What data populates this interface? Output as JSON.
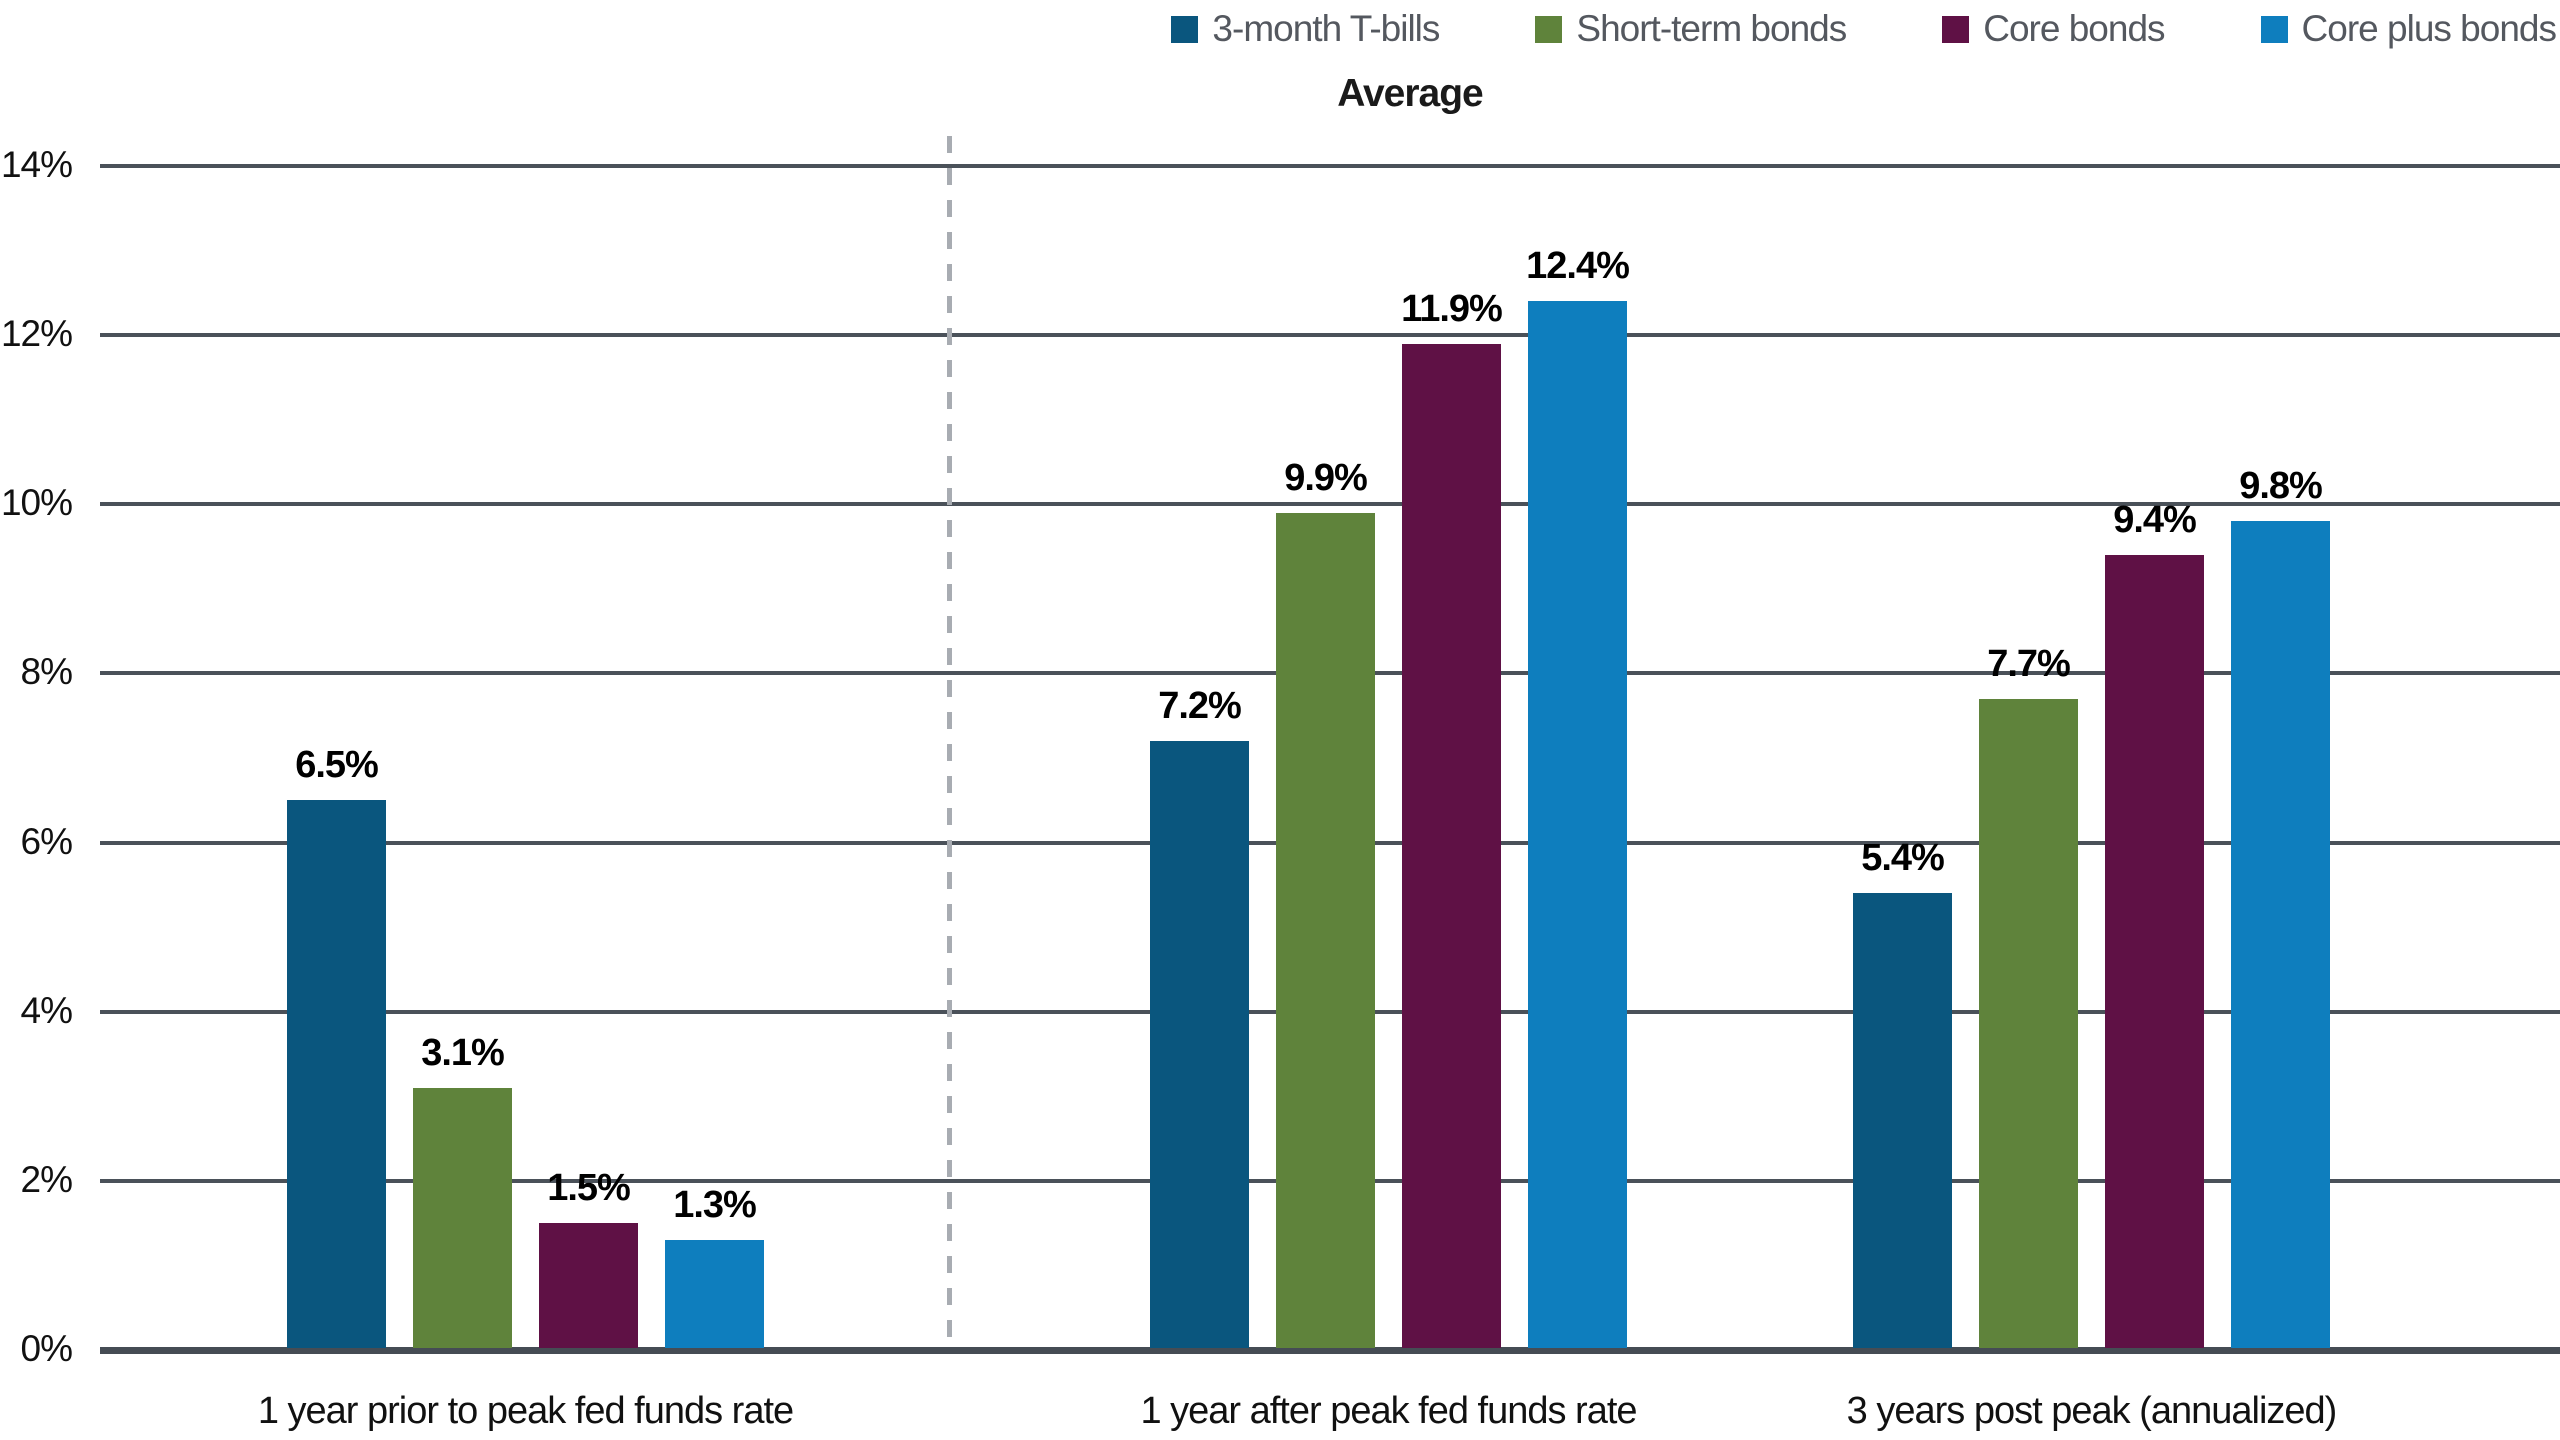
{
  "title": "Average",
  "legend": {
    "position": "top-right",
    "items": [
      {
        "label": "3-month T-bills",
        "color": "#0A567E"
      },
      {
        "label": "Short-term bonds",
        "color": "#5F833B"
      },
      {
        "label": "Core bonds",
        "color": "#5F1145"
      },
      {
        "label": "Core plus bonds",
        "color": "#0E7EBE"
      }
    ]
  },
  "chart_data": {
    "type": "bar",
    "title": "Average",
    "categories": [
      "1 year prior to peak fed funds rate",
      "1 year after peak fed funds rate",
      "3 years post peak (annualized)"
    ],
    "series": [
      {
        "name": "3-month T-bills",
        "color": "#0A567E",
        "values": [
          6.5,
          7.2,
          5.4
        ],
        "labels": [
          "6.5%",
          "7.2%",
          "5.4%"
        ]
      },
      {
        "name": "Short-term bonds",
        "color": "#5F833B",
        "values": [
          3.1,
          9.9,
          7.7
        ],
        "labels": [
          "3.1%",
          "9.9%",
          "7.7%"
        ]
      },
      {
        "name": "Core bonds",
        "color": "#5F1145",
        "values": [
          1.5,
          11.9,
          9.4
        ],
        "labels": [
          "1.5%",
          "11.9%",
          "9.4%"
        ]
      },
      {
        "name": "Core plus bonds",
        "color": "#0E7EBE",
        "values": [
          1.3,
          12.4,
          9.8
        ],
        "labels": [
          "1.3%",
          "12.4%",
          "9.8%"
        ]
      }
    ],
    "xlabel": "",
    "ylabel": "",
    "ylim": [
      0,
      14
    ],
    "yticks": [
      {
        "value": 0,
        "label": "0%"
      },
      {
        "value": 2,
        "label": "2%"
      },
      {
        "value": 4,
        "label": "4%"
      },
      {
        "value": 6,
        "label": "6%"
      },
      {
        "value": 8,
        "label": "8%"
      },
      {
        "value": 10,
        "label": "10%"
      },
      {
        "value": 12,
        "label": "12%"
      },
      {
        "value": 14,
        "label": "14%"
      }
    ],
    "grid": true,
    "legend_position": "top-right",
    "separator": {
      "style": "dashed",
      "color": "#A8ACB2",
      "between_categories": [
        "1 year prior to peak fed funds rate",
        "1 year after peak fed funds rate"
      ]
    },
    "colors": {
      "gridline": "#4A5159",
      "axis": "#454C54",
      "tick_text": "#111111",
      "legend_text": "#54585F",
      "value_label_text": "#000000"
    }
  }
}
